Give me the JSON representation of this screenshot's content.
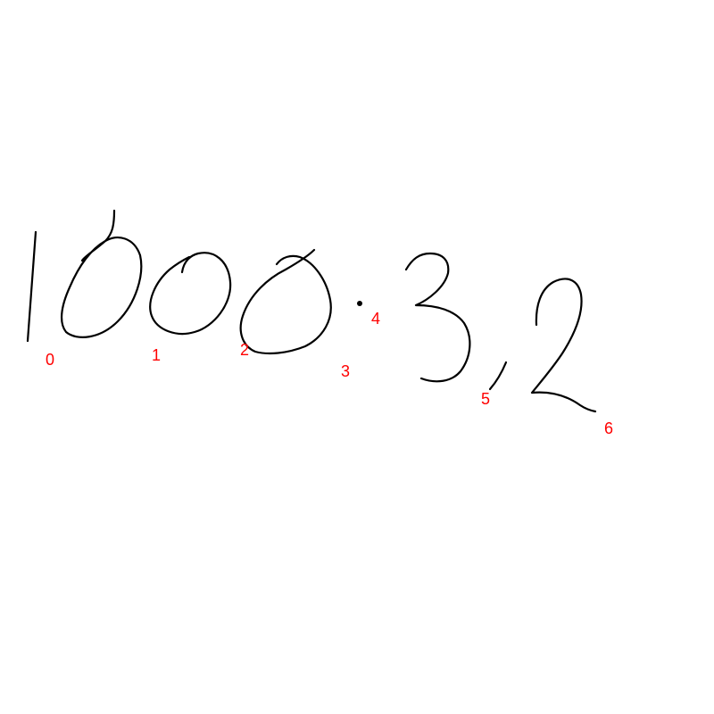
{
  "ink_color": "#000000",
  "label_color": "#ff0000",
  "segments": [
    {
      "index": 0,
      "glyph": "1",
      "label": "0"
    },
    {
      "index": 1,
      "glyph": "0",
      "label": "1"
    },
    {
      "index": 2,
      "glyph": "0",
      "label": "2"
    },
    {
      "index": 3,
      "glyph": "0",
      "label": "3"
    },
    {
      "index": 4,
      "glyph": ".",
      "label": "4"
    },
    {
      "index": 5,
      "glyph": "3",
      "label": "5"
    },
    {
      "index": 6,
      "glyph": "2",
      "label": "6"
    }
  ]
}
